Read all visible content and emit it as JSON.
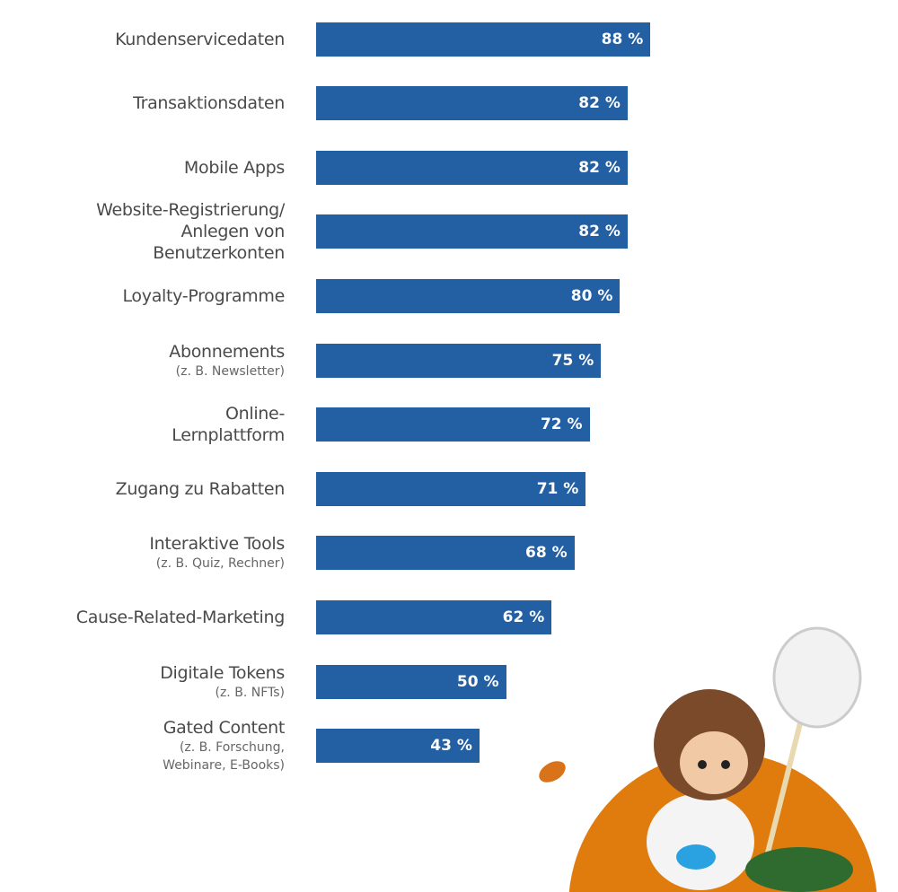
{
  "colors": {
    "bar": "#235fa3",
    "label": "#4a4a4a",
    "sublabel": "#666666",
    "circle": "#e07b0e"
  },
  "chart_data": {
    "type": "bar",
    "orientation": "horizontal",
    "xlim": [
      0,
      100
    ],
    "unit": "%",
    "grid": false,
    "items": [
      {
        "label": [
          "Kundenservicedaten"
        ],
        "sub": [],
        "value": 88,
        "value_label": "88 %"
      },
      {
        "label": [
          "Transaktionsdaten"
        ],
        "sub": [],
        "value": 82,
        "value_label": "82 %"
      },
      {
        "label": [
          "Mobile Apps"
        ],
        "sub": [],
        "value": 82,
        "value_label": "82 %"
      },
      {
        "label": [
          "Website-Registrierung/",
          "Anlegen von",
          "Benutzerkonten"
        ],
        "sub": [],
        "value": 82,
        "value_label": "82 %"
      },
      {
        "label": [
          "Loyalty-Programme"
        ],
        "sub": [],
        "value": 80,
        "value_label": "80 %"
      },
      {
        "label": [
          "Abonnements"
        ],
        "sub": [
          "(z. B. Newsletter)"
        ],
        "value": 75,
        "value_label": "75 %"
      },
      {
        "label": [
          "Online-",
          "Lernplattform"
        ],
        "sub": [],
        "value": 72,
        "value_label": "72 %"
      },
      {
        "label": [
          "Zugang zu Rabatten"
        ],
        "sub": [],
        "value": 71,
        "value_label": "71 %"
      },
      {
        "label": [
          "Interaktive Tools"
        ],
        "sub": [
          "(z. B. Quiz, Rechner)"
        ],
        "value": 68,
        "value_label": "68 %"
      },
      {
        "label": [
          "Cause-Related-Marketing"
        ],
        "sub": [],
        "value": 62,
        "value_label": "62 %"
      },
      {
        "label": [
          "Digitale Tokens"
        ],
        "sub": [
          "(z. B. NFTs)"
        ],
        "value": 50,
        "value_label": "50 %"
      },
      {
        "label": [
          "Gated Content"
        ],
        "sub": [
          "(z. B. Forschung,",
          "Webinare, E-Books)"
        ],
        "value": 43,
        "value_label": "43 %"
      }
    ]
  }
}
